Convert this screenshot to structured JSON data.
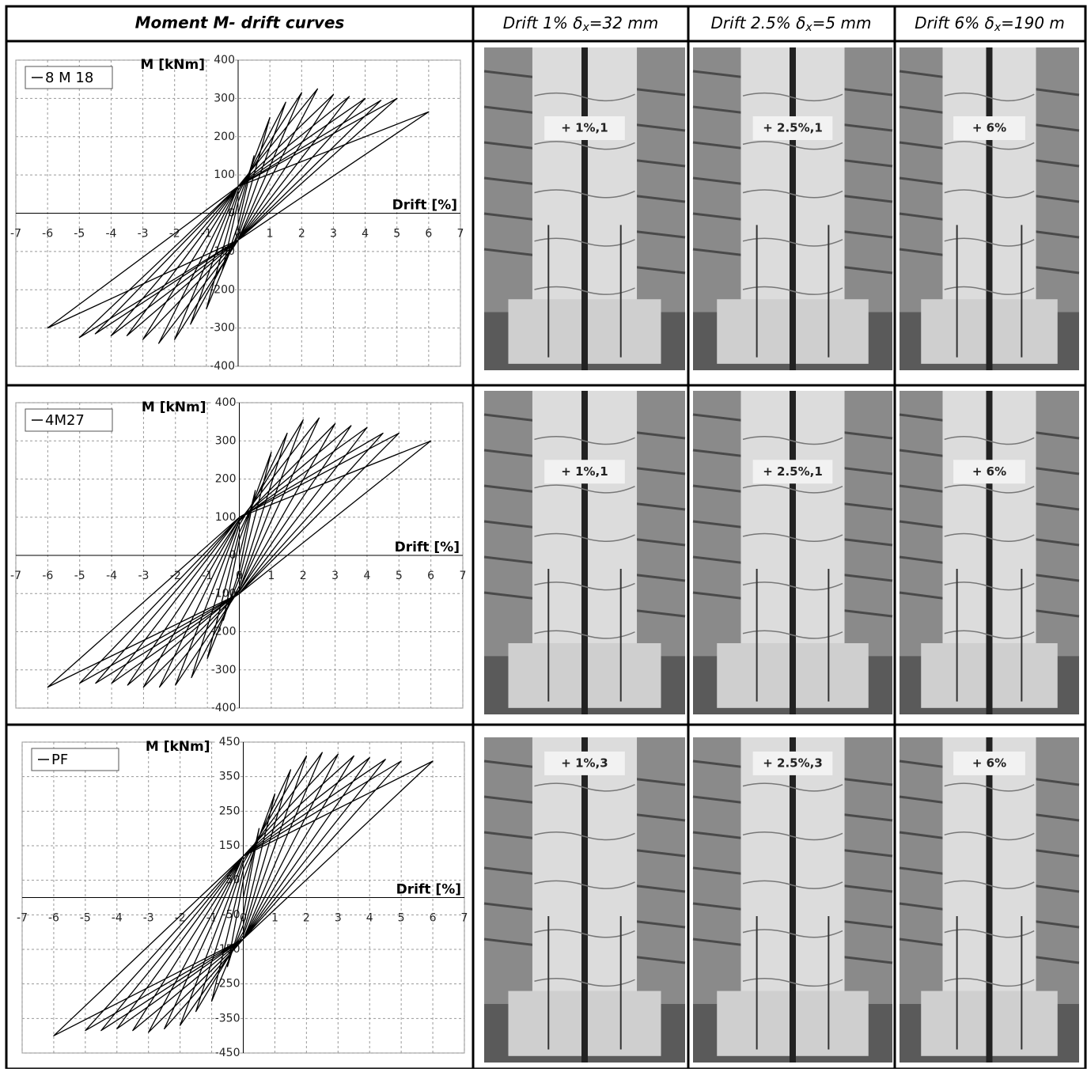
{
  "table": {
    "header": [
      {
        "text": "Moment M- drift curves"
      },
      {
        "pre": "Drift 1% δ",
        "sub": "x",
        "post": "=32 mm"
      },
      {
        "pre": "Drift 2.5% δ",
        "sub": "x",
        "post": "=5 mm"
      },
      {
        "pre": "Drift 6% δ",
        "sub": "x",
        "post": "=190 m"
      }
    ],
    "photos": [
      [
        {
          "sign": "+ 1%,1"
        },
        {
          "sign": "+ 2.5%,1"
        },
        {
          "sign": "+ 6%"
        }
      ],
      [
        {
          "sign": "+ 1%,1"
        },
        {
          "sign": "+ 2.5%,1"
        },
        {
          "sign": "+ 6%"
        }
      ],
      [
        {
          "sign": "+ 1%,3"
        },
        {
          "sign": "+ 2.5%,3"
        },
        {
          "sign": "+ 6%"
        }
      ]
    ]
  },
  "chart_data": [
    {
      "type": "line",
      "x_label": "Drift [%]",
      "y_label": "M [kNm]",
      "legend": "top-left",
      "grid": true,
      "xlim": [
        -7,
        7
      ],
      "ylim": [
        -400,
        400
      ],
      "xticks": [
        -7,
        -6,
        -5,
        -4,
        -3,
        -2,
        -1,
        0,
        1,
        2,
        3,
        4,
        5,
        6,
        7
      ],
      "yticks": [
        -400,
        -300,
        -200,
        -100,
        0,
        100,
        200,
        300,
        400
      ],
      "x": [
        0,
        0.5,
        0,
        -0.5,
        0,
        1,
        0,
        -1,
        0,
        1.5,
        0,
        -1.5,
        0,
        2,
        0,
        -2,
        0,
        2.5,
        0,
        -2.5,
        0,
        3,
        0,
        -3,
        0,
        3.5,
        0,
        -3.5,
        0,
        4,
        0,
        -4,
        0,
        4.5,
        0,
        -4.5,
        0,
        5,
        0,
        -5,
        0,
        6,
        0,
        -6,
        0
      ],
      "series": [
        {
          "name": "8 M 18",
          "color": "#000000",
          "values": [
            0,
            150,
            -30,
            -150,
            30,
            250,
            -50,
            -250,
            50,
            290,
            -60,
            -290,
            60,
            315,
            -70,
            -330,
            70,
            325,
            -70,
            -340,
            70,
            310,
            -70,
            -330,
            70,
            305,
            -70,
            -320,
            70,
            300,
            -70,
            -320,
            70,
            295,
            -70,
            -315,
            70,
            300,
            -70,
            -325,
            70,
            265,
            -70,
            -300,
            70
          ]
        }
      ]
    },
    {
      "type": "line",
      "x_label": "Drift [%]",
      "y_label": "M [kNm]",
      "legend": "top-left",
      "grid": true,
      "xlim": [
        -7,
        7
      ],
      "ylim": [
        -400,
        400
      ],
      "xticks": [
        -7,
        -6,
        -5,
        -4,
        -3,
        -2,
        -1,
        0,
        1,
        2,
        3,
        4,
        5,
        6,
        7
      ],
      "yticks": [
        -400,
        -300,
        -200,
        -100,
        0,
        100,
        200,
        300,
        400
      ],
      "x": [
        0,
        0.5,
        0,
        -0.5,
        0,
        1,
        0,
        -1,
        0,
        1.5,
        0,
        -1.5,
        0,
        2,
        0,
        -2,
        0,
        2.5,
        0,
        -2.5,
        0,
        3,
        0,
        -3,
        0,
        3.5,
        0,
        -3.5,
        0,
        4,
        0,
        -4,
        0,
        4.5,
        0,
        -4.5,
        0,
        5,
        0,
        -5,
        0,
        6,
        0,
        -6,
        0
      ],
      "series": [
        {
          "name": "4M27",
          "color": "#000000",
          "values": [
            0,
            170,
            -40,
            -170,
            40,
            270,
            -60,
            -270,
            60,
            320,
            -80,
            -320,
            80,
            355,
            -90,
            -340,
            90,
            360,
            -90,
            -345,
            90,
            345,
            -95,
            -345,
            95,
            340,
            -95,
            -340,
            95,
            335,
            -100,
            -335,
            100,
            320,
            -100,
            -335,
            100,
            320,
            -100,
            -335,
            100,
            300,
            -100,
            -345,
            100
          ]
        }
      ]
    },
    {
      "type": "line",
      "x_label": "Drift [%]",
      "y_label": "M [kNm]",
      "legend": "top-left",
      "grid": true,
      "xlim": [
        -7,
        7
      ],
      "ylim": [
        -450,
        450
      ],
      "xticks": [
        -7,
        -6,
        -5,
        -4,
        -3,
        -2,
        -1,
        0,
        1,
        2,
        3,
        4,
        5,
        6,
        7
      ],
      "yticks": [
        -450,
        -350,
        -250,
        -150,
        -50,
        50,
        150,
        250,
        350,
        450
      ],
      "x": [
        0,
        0.5,
        0,
        -0.5,
        0,
        1,
        0,
        -1,
        0,
        1.5,
        0,
        -1.5,
        0,
        2,
        0,
        -2,
        0,
        2.5,
        0,
        -2.5,
        0,
        3,
        0,
        -3,
        0,
        3.5,
        0,
        -3.5,
        0,
        4,
        0,
        -4,
        0,
        4.5,
        0,
        -4.5,
        0,
        5,
        0,
        -5,
        0,
        6,
        0,
        -6,
        0
      ],
      "series": [
        {
          "name": "PF",
          "color": "#000000",
          "values": [
            0,
            200,
            -50,
            -200,
            50,
            300,
            -80,
            -300,
            80,
            370,
            -100,
            -330,
            100,
            410,
            -110,
            -370,
            110,
            420,
            -120,
            -380,
            120,
            415,
            -120,
            -390,
            120,
            410,
            -120,
            -385,
            120,
            405,
            -120,
            -380,
            120,
            400,
            -120,
            -385,
            120,
            395,
            -120,
            -385,
            120,
            395,
            -120,
            -400,
            120
          ]
        }
      ]
    }
  ]
}
